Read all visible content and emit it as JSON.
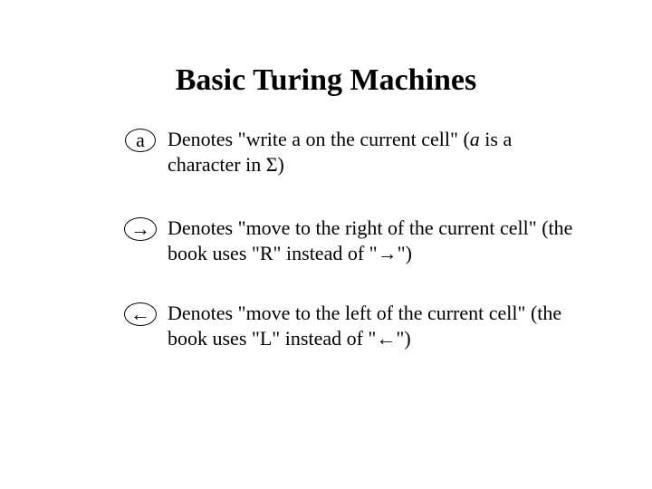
{
  "title": "Basic Turing Machines",
  "rows": [
    {
      "symbol": "a",
      "desc_pre": "Denotes \"write a on the current cell\" (",
      "desc_var": "a",
      "desc_mid": " is a character in ",
      "desc_sigma": "Σ",
      "desc_post": ")"
    },
    {
      "symbol": "→",
      "desc": "Denotes \"move to the right of the current cell\" (the book uses \"R\" instead of \"→\")"
    },
    {
      "symbol": "←",
      "desc": "Denotes \"move to the left of the current cell\" (the book uses \"L\" instead of \"←\")"
    }
  ],
  "layout": {
    "row_tops": [
      140,
      238,
      332
    ]
  },
  "colors": {
    "background": "#ffffff",
    "text": "#000000",
    "stroke": "#000000"
  }
}
